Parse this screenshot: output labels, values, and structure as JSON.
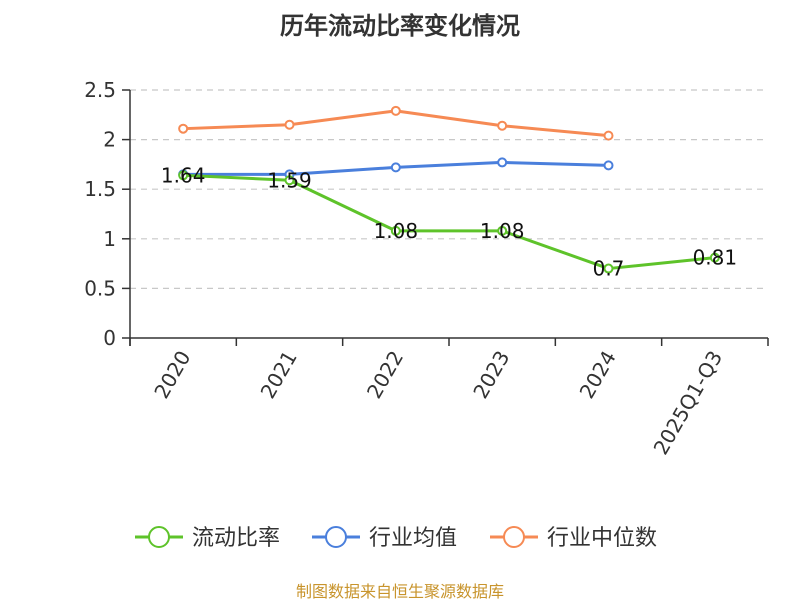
{
  "chart_data": {
    "type": "line",
    "title": "历年流动比率变化情况",
    "categories": [
      "2020",
      "2021",
      "2022",
      "2023",
      "2024",
      "2025Q1-Q3"
    ],
    "ylim": [
      0,
      2.5
    ],
    "yticks": [
      "0",
      "0.5",
      "1",
      "1.5",
      "2",
      "2.5"
    ],
    "grid": "horizontal-dashed",
    "legend_position": "bottom",
    "series": [
      {
        "name": "流动比率",
        "color": "#5ec32a",
        "values": [
          1.64,
          1.59,
          1.08,
          1.08,
          0.7,
          0.81
        ],
        "labels": [
          "1.64",
          "1.59",
          "1.08",
          "1.08",
          "0.7",
          "0.81"
        ]
      },
      {
        "name": "行业均值",
        "color": "#4a7fdc",
        "values": [
          1.65,
          1.65,
          1.72,
          1.77,
          1.74,
          null
        ]
      },
      {
        "name": "行业中位数",
        "color": "#f68a54",
        "values": [
          2.11,
          2.15,
          2.29,
          2.14,
          2.04,
          null
        ]
      }
    ]
  },
  "footer": {
    "source": "制图数据来自恒生聚源数据库",
    "color": "#c8942c"
  }
}
